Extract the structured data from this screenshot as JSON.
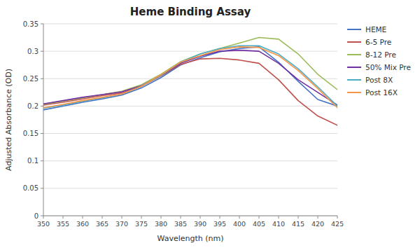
{
  "chart_data": {
    "type": "line",
    "title": "Heme Binding Assay",
    "xlabel": "Wavelength (nm)",
    "ylabel": "Adjusted Absorbance (OD)",
    "x": [
      350,
      355,
      360,
      365,
      370,
      375,
      380,
      385,
      390,
      395,
      400,
      405,
      410,
      415,
      420,
      425
    ],
    "xlim": [
      350,
      425
    ],
    "ylim": [
      0,
      0.35
    ],
    "xticks": [
      350,
      355,
      360,
      365,
      370,
      375,
      380,
      385,
      390,
      395,
      400,
      405,
      410,
      415,
      420,
      425
    ],
    "yticks": [
      0,
      0.05,
      0.1,
      0.15,
      0.2,
      0.25,
      0.3,
      0.35
    ],
    "grid": "y",
    "legend": "right",
    "series": [
      {
        "name": "HEME",
        "color": "#4472C4",
        "values": [
          0.193,
          0.2,
          0.207,
          0.213,
          0.22,
          0.233,
          0.252,
          0.275,
          0.288,
          0.299,
          0.305,
          0.308,
          0.28,
          0.245,
          0.212,
          0.2
        ]
      },
      {
        "name": "6-5 Pre",
        "color": "#C0504D",
        "values": [
          0.202,
          0.207,
          0.213,
          0.219,
          0.224,
          0.236,
          0.255,
          0.276,
          0.286,
          0.287,
          0.284,
          0.278,
          0.248,
          0.21,
          0.182,
          0.165
        ]
      },
      {
        "name": "8-12 Pre",
        "color": "#9BBB59",
        "values": [
          0.203,
          0.209,
          0.215,
          0.221,
          0.227,
          0.239,
          0.258,
          0.281,
          0.295,
          0.305,
          0.315,
          0.325,
          0.322,
          0.295,
          0.258,
          0.23
        ]
      },
      {
        "name": "50% Mix Pre",
        "color": "#7030A0",
        "values": [
          0.204,
          0.21,
          0.216,
          0.221,
          0.226,
          0.237,
          0.256,
          0.278,
          0.291,
          0.3,
          0.302,
          0.3,
          0.278,
          0.248,
          0.225,
          0.202
        ]
      },
      {
        "name": "Post 8X",
        "color": "#4BACC6",
        "values": [
          0.196,
          0.202,
          0.209,
          0.215,
          0.222,
          0.236,
          0.256,
          0.28,
          0.295,
          0.305,
          0.31,
          0.31,
          0.295,
          0.268,
          0.235,
          0.2
        ]
      },
      {
        "name": "Post 16X",
        "color": "#F79646",
        "values": [
          0.197,
          0.203,
          0.21,
          0.216,
          0.222,
          0.236,
          0.257,
          0.28,
          0.292,
          0.303,
          0.308,
          0.307,
          0.292,
          0.265,
          0.232,
          0.197
        ]
      }
    ]
  }
}
